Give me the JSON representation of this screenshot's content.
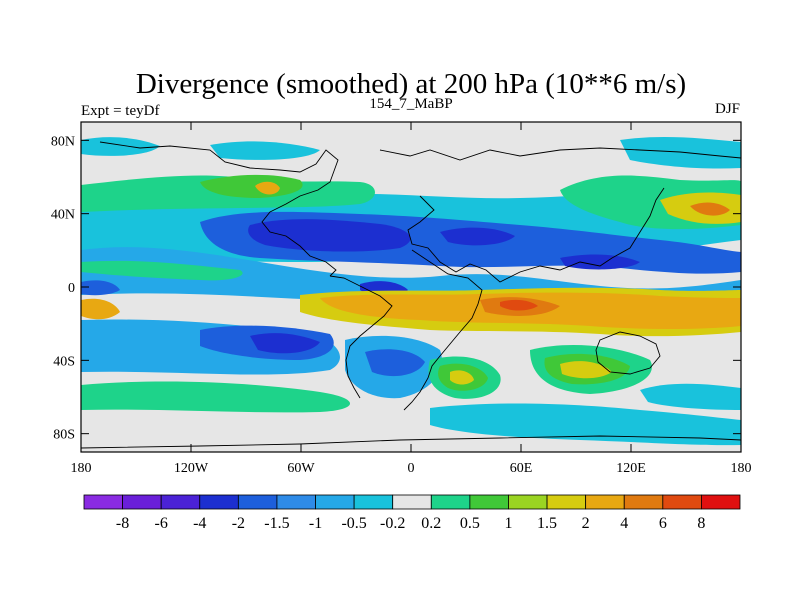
{
  "title": "Divergence (smoothed) at 200 hPa (10**6 m/s)",
  "left_label": "Expt = teyDf",
  "center_label": "154_7_MaBP",
  "right_label": "DJF",
  "y_ticks": [
    {
      "label": "80N",
      "lat": 80
    },
    {
      "label": "40N",
      "lat": 40
    },
    {
      "label": "0",
      "lat": 0
    },
    {
      "label": "40S",
      "lat": -40
    },
    {
      "label": "80S",
      "lat": -80
    }
  ],
  "x_ticks": [
    {
      "label": "180",
      "lon": -180
    },
    {
      "label": "120W",
      "lon": -120
    },
    {
      "label": "60W",
      "lon": -60
    },
    {
      "label": "0",
      "lon": 0
    },
    {
      "label": "60E",
      "lon": 60
    },
    {
      "label": "120E",
      "lon": 120
    },
    {
      "label": "180",
      "lon": 180
    }
  ],
  "map_extent": {
    "lon": [
      -180,
      180
    ],
    "lat": [
      -90,
      90
    ]
  },
  "colorbar": {
    "colors": [
      "#8a2be2",
      "#6a1fd9",
      "#4b22d6",
      "#1c2fd0",
      "#1d5fdc",
      "#2e8be8",
      "#25a8e8",
      "#19c2dc",
      "#e6e6e6",
      "#1ed38a",
      "#40c838",
      "#9ad422",
      "#d6cc10",
      "#e8a812",
      "#e07a10",
      "#e04a10",
      "#e01010"
    ],
    "labels": [
      "-8",
      "-6",
      "-4",
      "-2",
      "-1.5",
      "-1",
      "-0.5",
      "-0.2",
      "0.2",
      "0.5",
      "1",
      "1.5",
      "2",
      "4",
      "6",
      "8"
    ]
  },
  "palette": {
    "neutral": "#e6e6e6",
    "cyan": "#19c2dc",
    "light_blue": "#25a8e8",
    "blue": "#1d5fdc",
    "dark_blue": "#1c2fd0",
    "green": "#1ed38a",
    "lime": "#40c838",
    "yellow": "#d6cc10",
    "orange": "#e8a812",
    "red_orange": "#e07a10",
    "red": "#e04a10"
  }
}
